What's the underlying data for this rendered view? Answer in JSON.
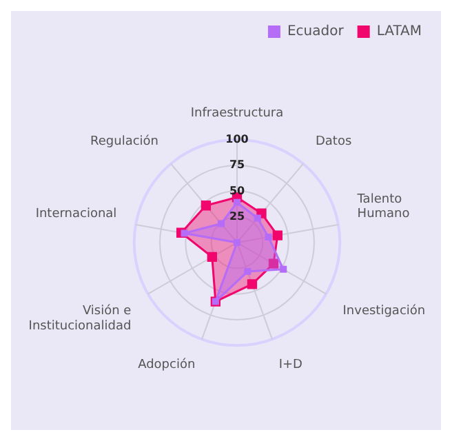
{
  "chart_data": {
    "type": "radar",
    "categories": [
      "Infraestructura",
      "Datos",
      "Talento Humano",
      "Investigación",
      "I+D",
      "Adopción",
      "Visión e Institucionalidad",
      "Internacional",
      "Regulación"
    ],
    "series": [
      {
        "name": "Ecuador",
        "color": "#b56cf7",
        "values": [
          39,
          31,
          31,
          52,
          30,
          61,
          0,
          52,
          24
        ]
      },
      {
        "name": "LATAM",
        "color": "#f0066c",
        "values": [
          44,
          37,
          40,
          41,
          43,
          61,
          28,
          55,
          47
        ]
      }
    ],
    "ylim": [
      0,
      100
    ],
    "yticks": [
      25,
      50,
      75,
      100
    ],
    "grid": true,
    "legend": "top right",
    "marker": "square"
  }
}
